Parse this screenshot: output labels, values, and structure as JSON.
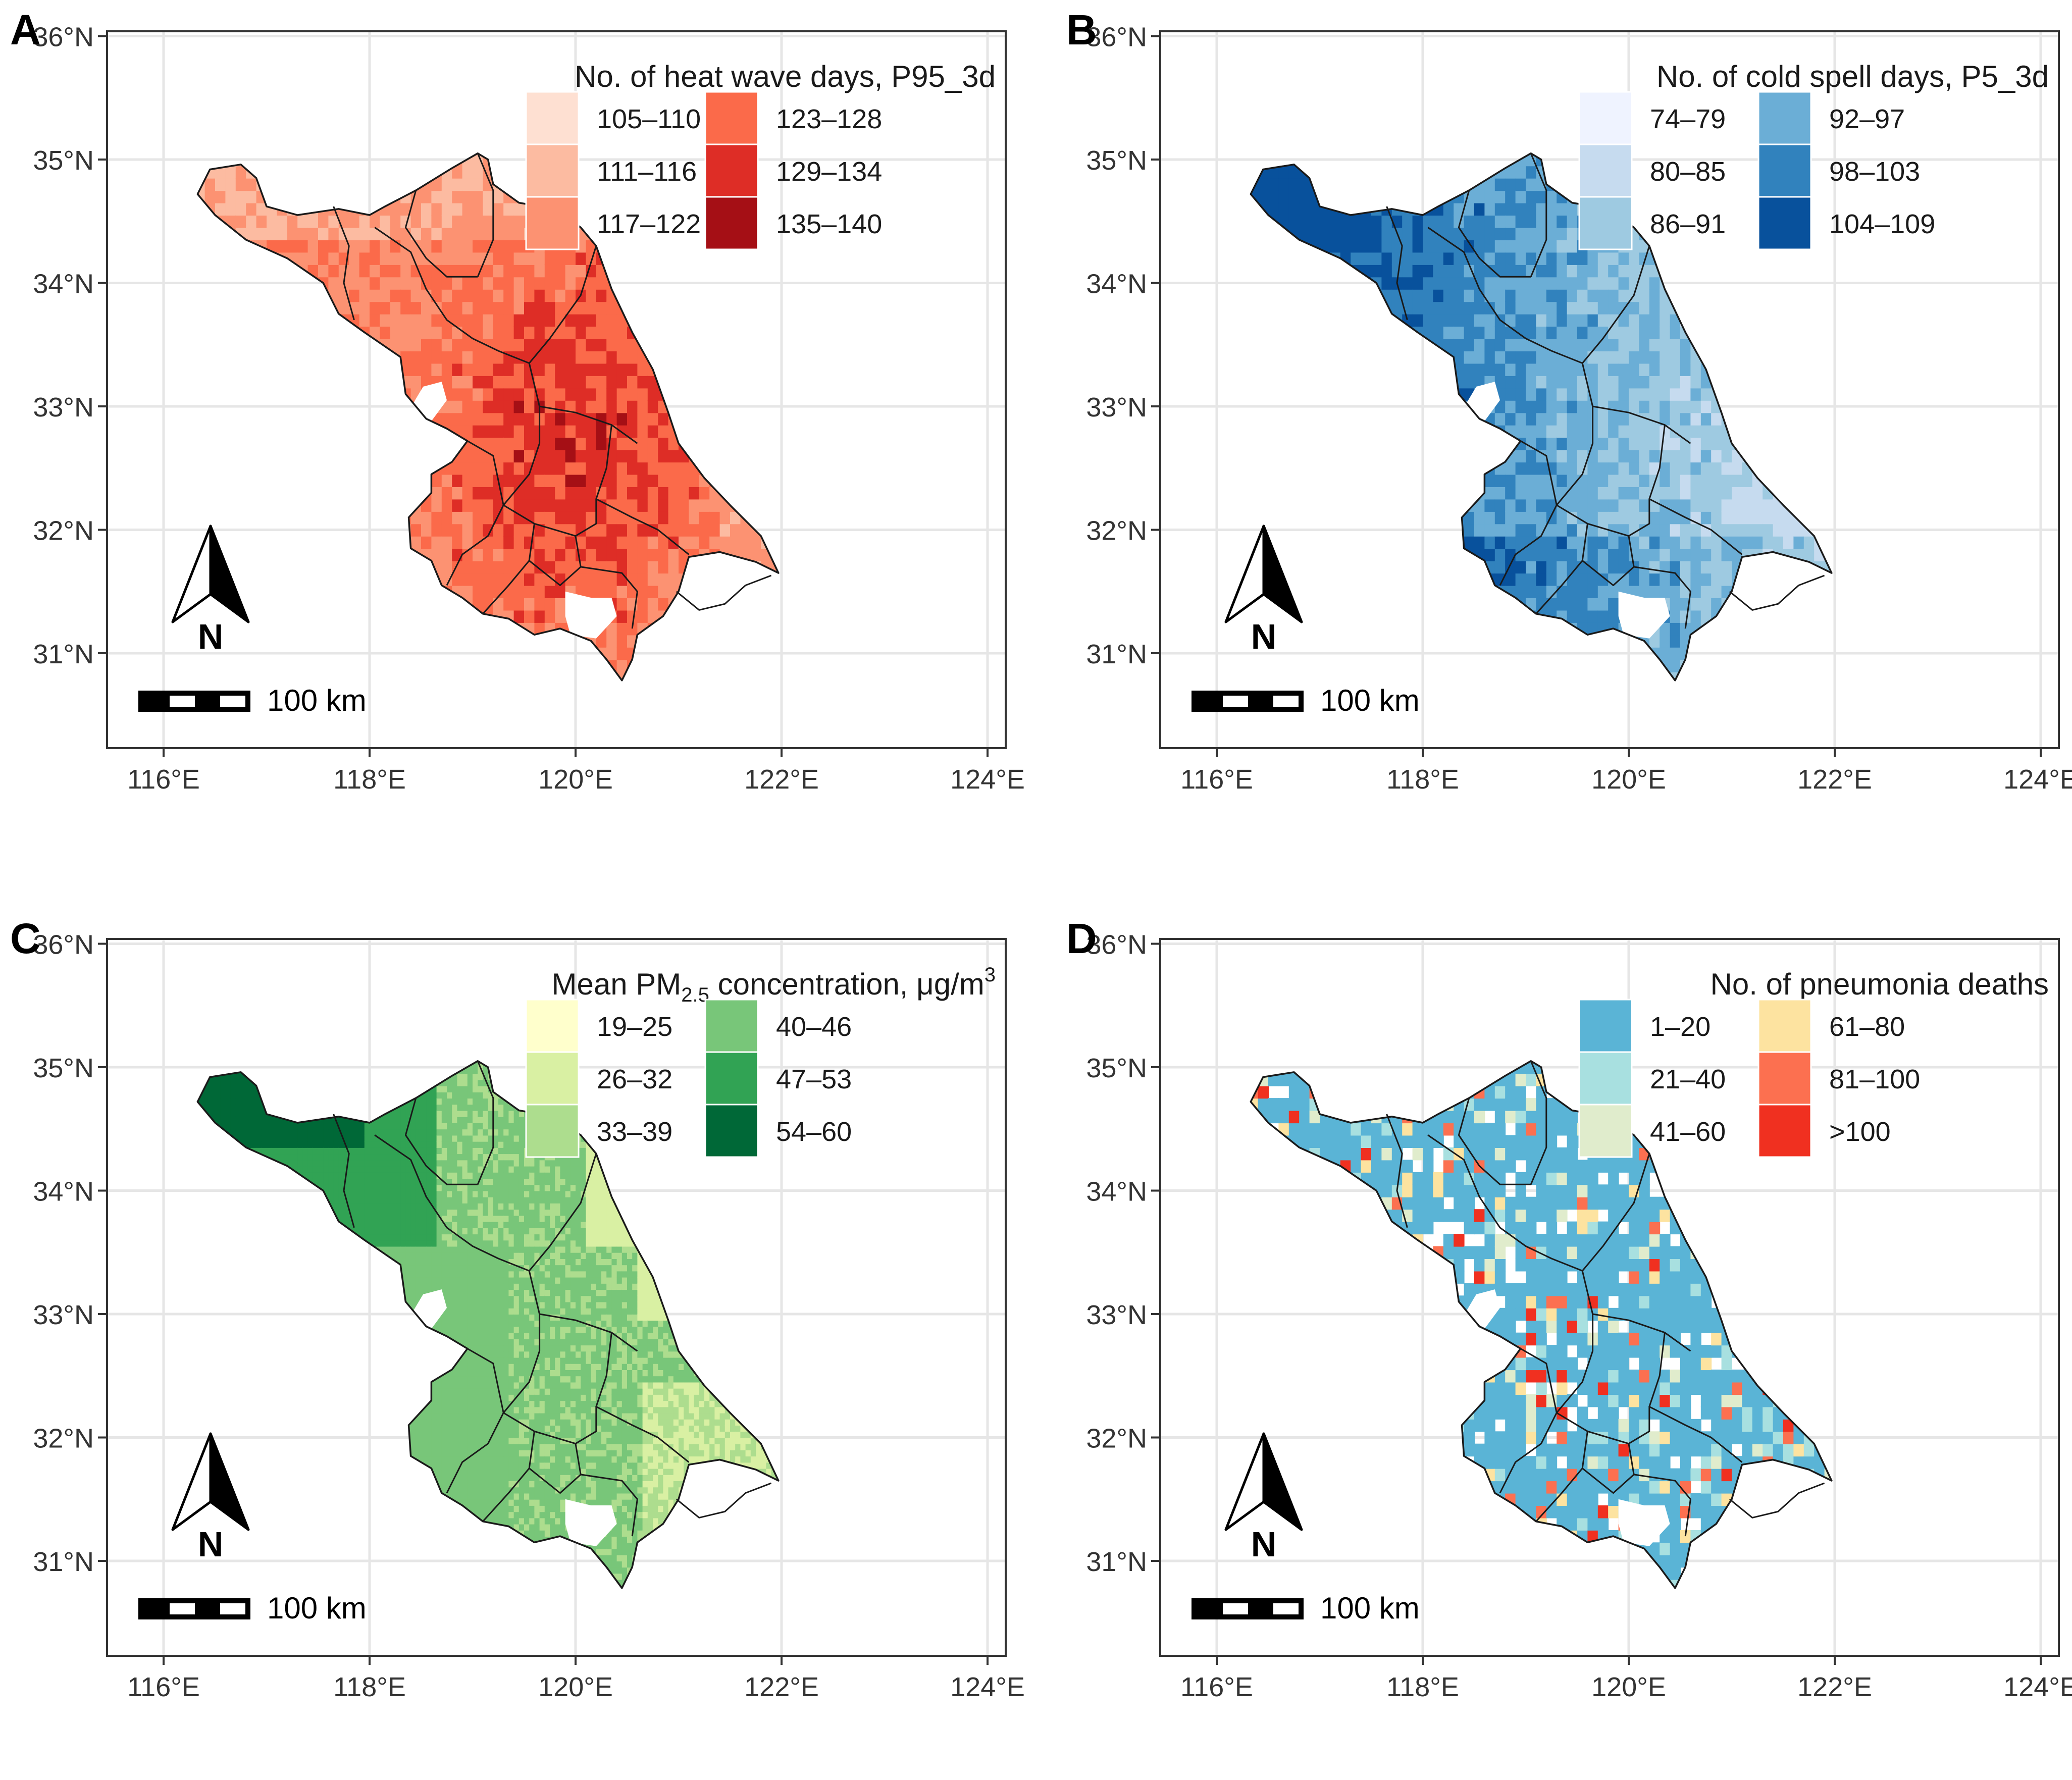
{
  "figure": {
    "lat_ticks": [
      "31°N",
      "32°N",
      "33°N",
      "34°N",
      "35°N",
      "36°N"
    ],
    "lon_ticks": [
      "116°E",
      "118°E",
      "120°E",
      "122°E",
      "124°E"
    ],
    "scale_label": "100 km",
    "north_label": "N",
    "colors": {
      "grid": "#e6e6e6",
      "panel_border": "#333333",
      "boundary": "#1a1a1a",
      "background": "#ffffff"
    }
  },
  "panels": [
    {
      "letter": "A",
      "legend_title": "No. of heat wave days, P95_3d",
      "legend_items": [
        {
          "label": "105–110",
          "color": "#fee0d2"
        },
        {
          "label": "111–116",
          "color": "#fcbba1"
        },
        {
          "label": "117–122",
          "color": "#fc9272"
        },
        {
          "label": "123–128",
          "color": "#fb6a4a"
        },
        {
          "label": "129–134",
          "color": "#de2d26"
        },
        {
          "label": "135–140",
          "color": "#a50f15"
        }
      ]
    },
    {
      "letter": "B",
      "legend_title": "No. of cold spell days, P5_3d",
      "legend_items": [
        {
          "label": "74–79",
          "color": "#eff3ff"
        },
        {
          "label": "80–85",
          "color": "#c6dbef"
        },
        {
          "label": "86–91",
          "color": "#9ecae1"
        },
        {
          "label": "92–97",
          "color": "#6baed6"
        },
        {
          "label": "98–103",
          "color": "#3182bd"
        },
        {
          "label": "104–109",
          "color": "#08519c"
        }
      ]
    },
    {
      "letter": "C",
      "legend_title": "Mean PM",
      "legend_title_sub": "2.5",
      "legend_title_rest": " concentration, μg/m",
      "legend_title_sup": "3",
      "legend_items": [
        {
          "label": "19–25",
          "color": "#ffffcc"
        },
        {
          "label": "26–32",
          "color": "#d9f0a3"
        },
        {
          "label": "33–39",
          "color": "#addd8e"
        },
        {
          "label": "40–46",
          "color": "#78c679"
        },
        {
          "label": "47–53",
          "color": "#31a354"
        },
        {
          "label": "54–60",
          "color": "#006837"
        }
      ]
    },
    {
      "letter": "D",
      "legend_title": "No. of pneumonia deaths",
      "legend_items": [
        {
          "label": "1–20",
          "color": "#5ab4d6"
        },
        {
          "label": "21–40",
          "color": "#a8e0e0"
        },
        {
          "label": "41–60",
          "color": "#e0eccc"
        },
        {
          "label": "61–80",
          "color": "#fde3a0"
        },
        {
          "label": "81–100",
          "color": "#fc7050"
        },
        {
          "label": ">100",
          "color": "#f03020"
        }
      ]
    }
  ]
}
